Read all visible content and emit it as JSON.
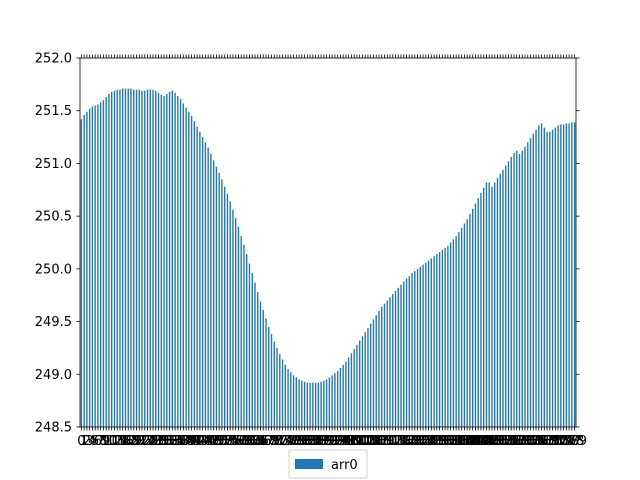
{
  "chart_data": {
    "type": "bar",
    "ylim": [
      248.5,
      252.0
    ],
    "yticks": [
      "248.5",
      "249.0",
      "249.5",
      "250.0",
      "250.5",
      "251.0",
      "251.5",
      "252.0"
    ],
    "ytick_values": [
      248.5,
      249.0,
      249.5,
      250.0,
      250.5,
      251.0,
      251.5,
      252.0
    ],
    "x_start": 0,
    "x_count": 180,
    "grid": false,
    "legend": {
      "position": "bottom-center"
    },
    "colors": {
      "bar": "#1f77b4",
      "axis": "#000000"
    },
    "series": [
      {
        "name": "arr0",
        "values": [
          251.42,
          251.46,
          251.49,
          251.52,
          251.54,
          251.55,
          251.56,
          251.58,
          251.6,
          251.63,
          251.66,
          251.68,
          251.69,
          251.7,
          251.7,
          251.71,
          251.71,
          251.71,
          251.71,
          251.7,
          251.7,
          251.7,
          251.69,
          251.69,
          251.7,
          251.7,
          251.7,
          251.69,
          251.67,
          251.65,
          251.64,
          251.66,
          251.68,
          251.69,
          251.67,
          251.64,
          251.61,
          251.57,
          251.53,
          251.49,
          251.45,
          251.4,
          251.35,
          251.3,
          251.25,
          251.2,
          251.15,
          251.09,
          251.03,
          250.97,
          250.91,
          250.85,
          250.78,
          250.71,
          250.64,
          250.56,
          250.48,
          250.4,
          250.31,
          250.23,
          250.14,
          250.05,
          249.96,
          249.87,
          249.78,
          249.69,
          249.61,
          249.53,
          249.45,
          249.38,
          249.31,
          249.25,
          249.19,
          249.14,
          249.09,
          249.05,
          249.02,
          248.99,
          248.97,
          248.95,
          248.94,
          248.93,
          248.92,
          248.92,
          248.92,
          248.92,
          248.92,
          248.93,
          248.94,
          248.95,
          248.97,
          248.99,
          249.01,
          249.03,
          249.06,
          249.09,
          249.12,
          249.16,
          249.2,
          249.24,
          249.28,
          249.32,
          249.36,
          249.4,
          249.44,
          249.48,
          249.52,
          249.56,
          249.6,
          249.64,
          249.67,
          249.7,
          249.73,
          249.76,
          249.79,
          249.82,
          249.85,
          249.88,
          249.91,
          249.93,
          249.96,
          249.98,
          250.0,
          250.02,
          250.04,
          250.06,
          250.08,
          250.1,
          250.12,
          250.14,
          250.16,
          250.18,
          250.2,
          250.22,
          250.25,
          250.28,
          250.31,
          250.35,
          250.39,
          250.43,
          250.47,
          250.52,
          250.57,
          250.62,
          250.67,
          250.72,
          250.77,
          250.82,
          250.82,
          250.78,
          250.82,
          250.86,
          250.9,
          250.94,
          250.98,
          251.02,
          251.06,
          251.1,
          251.12,
          251.09,
          251.12,
          251.16,
          251.2,
          251.24,
          251.28,
          251.32,
          251.36,
          251.38,
          251.34,
          251.3,
          251.3,
          251.32,
          251.34,
          251.36,
          251.37,
          251.37,
          251.38,
          251.38,
          251.39,
          251.39
        ]
      }
    ]
  }
}
